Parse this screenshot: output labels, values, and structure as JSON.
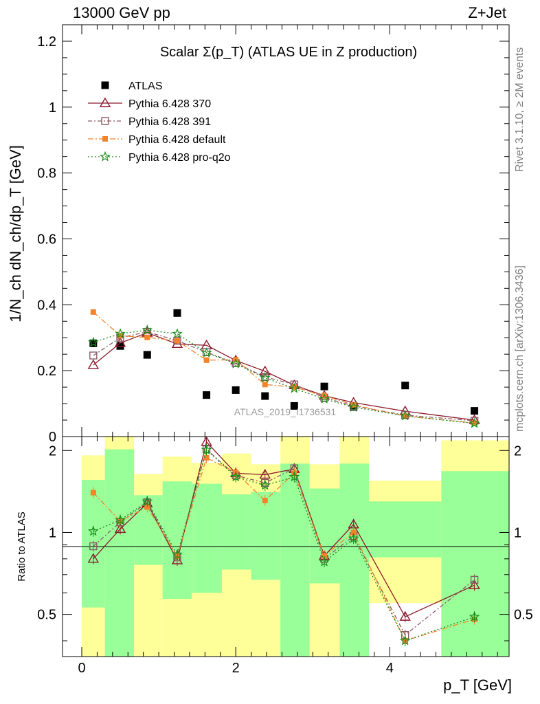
{
  "header": {
    "left_label": "13000 GeV pp",
    "right_label": "Z+Jet"
  },
  "side_labels": {
    "rivet": "Rivet 3.1.10, ≥ 2M events",
    "source": "mcplots.cern.ch [arXiv:1306.3436]"
  },
  "chart_data": {
    "type": "scatter",
    "title": "Scalar Σ(p_T) (ATLAS UE in Z production)",
    "analysis_id": "ATLAS_2019_I1736531",
    "xlabel": "p_T [GeV]",
    "ylabel": "1/N_ch dN_ch/dp_T [GeV]",
    "ratio_ylabel": "Ratio to ATLAS",
    "xlim": [
      -0.25,
      5.55
    ],
    "ylim": [
      0,
      1.25
    ],
    "ratio_ylim": [
      0.35,
      2.25
    ],
    "legend_position": "top-left",
    "x_ticks": [
      0,
      2,
      4
    ],
    "y_ticks": [
      0.2,
      0.4,
      0.6,
      0.8,
      1,
      1.2
    ],
    "ratio_ticks": [
      0.5,
      1,
      2
    ],
    "x": [
      0.15,
      0.5,
      0.85,
      1.24,
      1.62,
      2.0,
      2.38,
      2.76,
      3.15,
      3.53,
      4.2,
      5.1
    ],
    "series": [
      {
        "name": "ATLAS",
        "color": "#000000",
        "marker": "square",
        "values": [
          0.283,
          0.275,
          0.248,
          0.375,
          0.126,
          0.141,
          0.123,
          0.093,
          0.152,
          0.09,
          0.155,
          0.078
        ]
      },
      {
        "name": "Pythia 6.428 370",
        "color": "#8b1a2b",
        "marker": "triangle",
        "dash": "",
        "values": [
          0.217,
          0.284,
          0.315,
          0.281,
          0.277,
          0.231,
          0.198,
          0.156,
          0.124,
          0.103,
          0.077,
          0.05
        ],
        "ratio": [
          0.8,
          1.03,
          1.28,
          0.79,
          2.15,
          1.65,
          1.63,
          1.71,
          0.82,
          1.07,
          0.49,
          0.64
        ]
      },
      {
        "name": "Pythia 6.428 391",
        "color": "#8a5a64",
        "marker": "square-open",
        "dash": "6,3,2,3",
        "values": [
          0.246,
          0.3,
          0.318,
          0.291,
          0.256,
          0.223,
          0.181,
          0.158,
          0.118,
          0.093,
          0.065,
          0.048
        ],
        "ratio": [
          0.89,
          1.09,
          1.29,
          0.81,
          2.02,
          1.62,
          1.52,
          1.72,
          0.8,
          0.97,
          0.42,
          0.67
        ]
      },
      {
        "name": "Pythia 6.428 default",
        "color": "#f5832a",
        "marker": "square-filled",
        "dash": "8,3,2,3",
        "values": [
          0.378,
          0.306,
          0.301,
          0.291,
          0.232,
          0.233,
          0.158,
          0.15,
          0.124,
          0.096,
          0.062,
          0.041
        ],
        "ratio": [
          1.4,
          1.1,
          1.24,
          0.82,
          1.88,
          1.66,
          1.31,
          1.65,
          0.82,
          1.0,
          0.4,
          0.48
        ]
      },
      {
        "name": "Pythia 6.428 pro-q2o",
        "color": "#1a8c1a",
        "marker": "star",
        "dash": "2,3",
        "values": [
          0.286,
          0.312,
          0.323,
          0.312,
          0.254,
          0.221,
          0.178,
          0.146,
          0.114,
          0.089,
          0.063,
          0.04
        ],
        "ratio": [
          1.01,
          1.11,
          1.3,
          0.83,
          2.01,
          1.6,
          1.49,
          1.6,
          0.78,
          0.95,
          0.4,
          0.49
        ]
      }
    ],
    "uncertainty_bands": {
      "edges": [
        0.0,
        0.3,
        0.68,
        1.05,
        1.43,
        1.82,
        2.2,
        2.58,
        2.96,
        3.35,
        3.73,
        4.67,
        5.55
      ],
      "yellow_low": [
        0.35,
        0.35,
        0.35,
        0.35,
        0.35,
        0.35,
        0.35,
        0.35,
        0.35,
        0.35,
        0.55,
        0.35
      ],
      "yellow_high": [
        1.92,
        2.25,
        1.64,
        1.9,
        1.8,
        1.95,
        1.78,
        2.25,
        1.78,
        2.25,
        1.55,
        2.18
      ],
      "green_low": [
        0.53,
        0.35,
        0.76,
        0.57,
        0.6,
        0.73,
        0.67,
        0.35,
        0.65,
        0.35,
        0.81,
        0.35
      ],
      "green_high": [
        1.56,
        2.02,
        1.37,
        1.54,
        1.51,
        1.38,
        1.41,
        1.79,
        1.45,
        1.79,
        1.3,
        1.68
      ]
    }
  }
}
